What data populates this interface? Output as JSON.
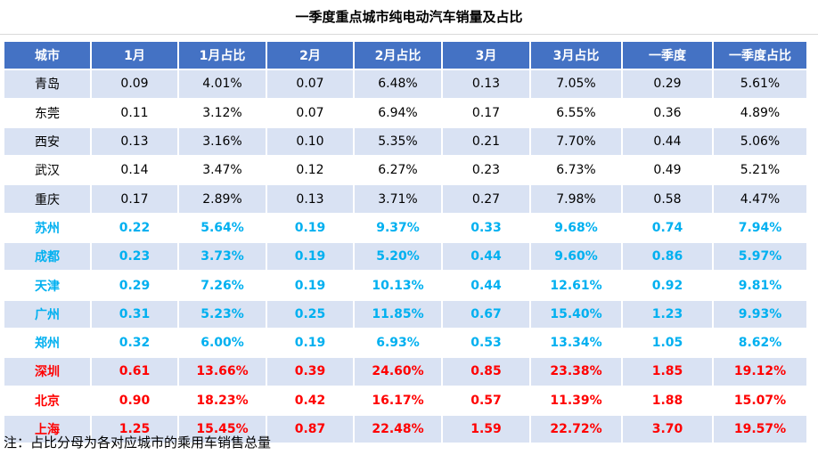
{
  "title": "一季度重点城市纯电动汽车销量及占比",
  "headers": [
    "城市",
    "1月",
    "1月占比",
    "2月",
    "2月占比",
    "3月",
    "3月占比",
    "一季度",
    "一季度占比"
  ],
  "rows": [
    [
      "青岛",
      "0.09",
      "4.01%",
      "0.07",
      "6.48%",
      "0.13",
      "7.05%",
      "0.29",
      "5.61%"
    ],
    [
      "东莞",
      "0.11",
      "3.12%",
      "0.07",
      "6.94%",
      "0.17",
      "6.55%",
      "0.36",
      "4.89%"
    ],
    [
      "西安",
      "0.13",
      "3.16%",
      "0.10",
      "5.35%",
      "0.21",
      "7.70%",
      "0.44",
      "5.06%"
    ],
    [
      "武汉",
      "0.14",
      "3.47%",
      "0.12",
      "6.27%",
      "0.23",
      "6.73%",
      "0.49",
      "5.21%"
    ],
    [
      "重庆",
      "0.17",
      "2.89%",
      "0.13",
      "3.71%",
      "0.27",
      "7.98%",
      "0.58",
      "4.47%"
    ],
    [
      "苏州",
      "0.22",
      "5.64%",
      "0.19",
      "9.37%",
      "0.33",
      "9.68%",
      "0.74",
      "7.94%"
    ],
    [
      "成都",
      "0.23",
      "3.73%",
      "0.19",
      "5.20%",
      "0.44",
      "9.60%",
      "0.86",
      "5.97%"
    ],
    [
      "天津",
      "0.29",
      "7.26%",
      "0.19",
      "10.13%",
      "0.44",
      "12.61%",
      "0.92",
      "9.81%"
    ],
    [
      "广州",
      "0.31",
      "5.23%",
      "0.25",
      "11.85%",
      "0.67",
      "15.40%",
      "1.23",
      "9.93%"
    ],
    [
      "郑州",
      "0.32",
      "6.00%",
      "0.19",
      "6.93%",
      "0.53",
      "13.34%",
      "1.05",
      "8.62%"
    ],
    [
      "深圳",
      "0.61",
      "13.66%",
      "0.39",
      "24.60%",
      "0.85",
      "23.38%",
      "1.85",
      "19.12%"
    ],
    [
      "北京",
      "0.90",
      "18.23%",
      "0.42",
      "16.17%",
      "0.57",
      "11.39%",
      "1.88",
      "15.07%"
    ],
    [
      "上海",
      "1.25",
      "15.45%",
      "0.87",
      "22.48%",
      "1.59",
      "22.72%",
      "3.70",
      "19.57%"
    ]
  ],
  "row_styles": [
    "normal",
    "normal",
    "normal",
    "normal",
    "normal",
    "blue",
    "blue",
    "blue",
    "blue",
    "blue",
    "red",
    "red",
    "red"
  ],
  "colors": {
    "header_bg": "#4472c4",
    "band_bg": "#d9e2f3",
    "highlight_blue": "#00b0f0",
    "highlight_red": "#ff0000"
  },
  "note": "注：占比分母为各对应城市的乘用车销售总量"
}
